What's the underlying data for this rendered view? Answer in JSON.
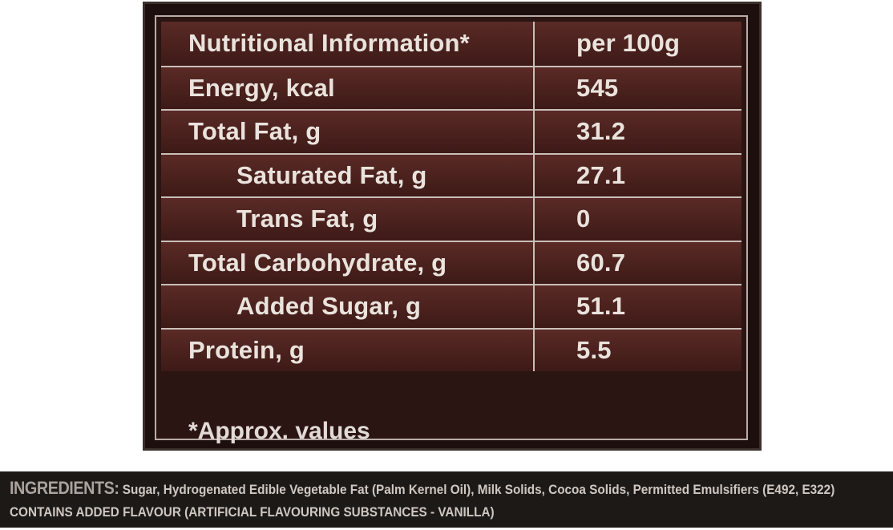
{
  "nutrition": {
    "header": {
      "label": "Nutritional Information*",
      "value": "per 100g"
    },
    "rows": [
      {
        "label": "Energy, kcal",
        "value": "545"
      },
      {
        "label": "Total Fat, g",
        "value": "31.2"
      },
      {
        "label": "Saturated Fat, g",
        "value": "27.1"
      },
      {
        "label": "Trans Fat, g",
        "value": "0"
      },
      {
        "label": "Total Carbohydrate, g",
        "value": "60.7"
      },
      {
        "label": "Added Sugar, g",
        "value": "51.1"
      },
      {
        "label": "Protein, g",
        "value": "5.5"
      }
    ],
    "footnote": "*Approx. values"
  },
  "ingredients": {
    "heading": "INGREDIENTS:",
    "text": "Sugar, Hydrogenated Edible Vegetable Fat (Palm Kernel Oil), Milk Solids, Cocoa Solids, Permitted Emulsifiers (E492, E322)",
    "line2": "CONTAINS ADDED FLAVOUR (ARTIFICIAL FLAVOURING SUBSTANCES - VANILLA)"
  },
  "colors": {
    "panel_background": "#1c0f0d",
    "cell_background": "#4a211d",
    "text": "#eae3dd",
    "strip_background": "#1d1917"
  }
}
